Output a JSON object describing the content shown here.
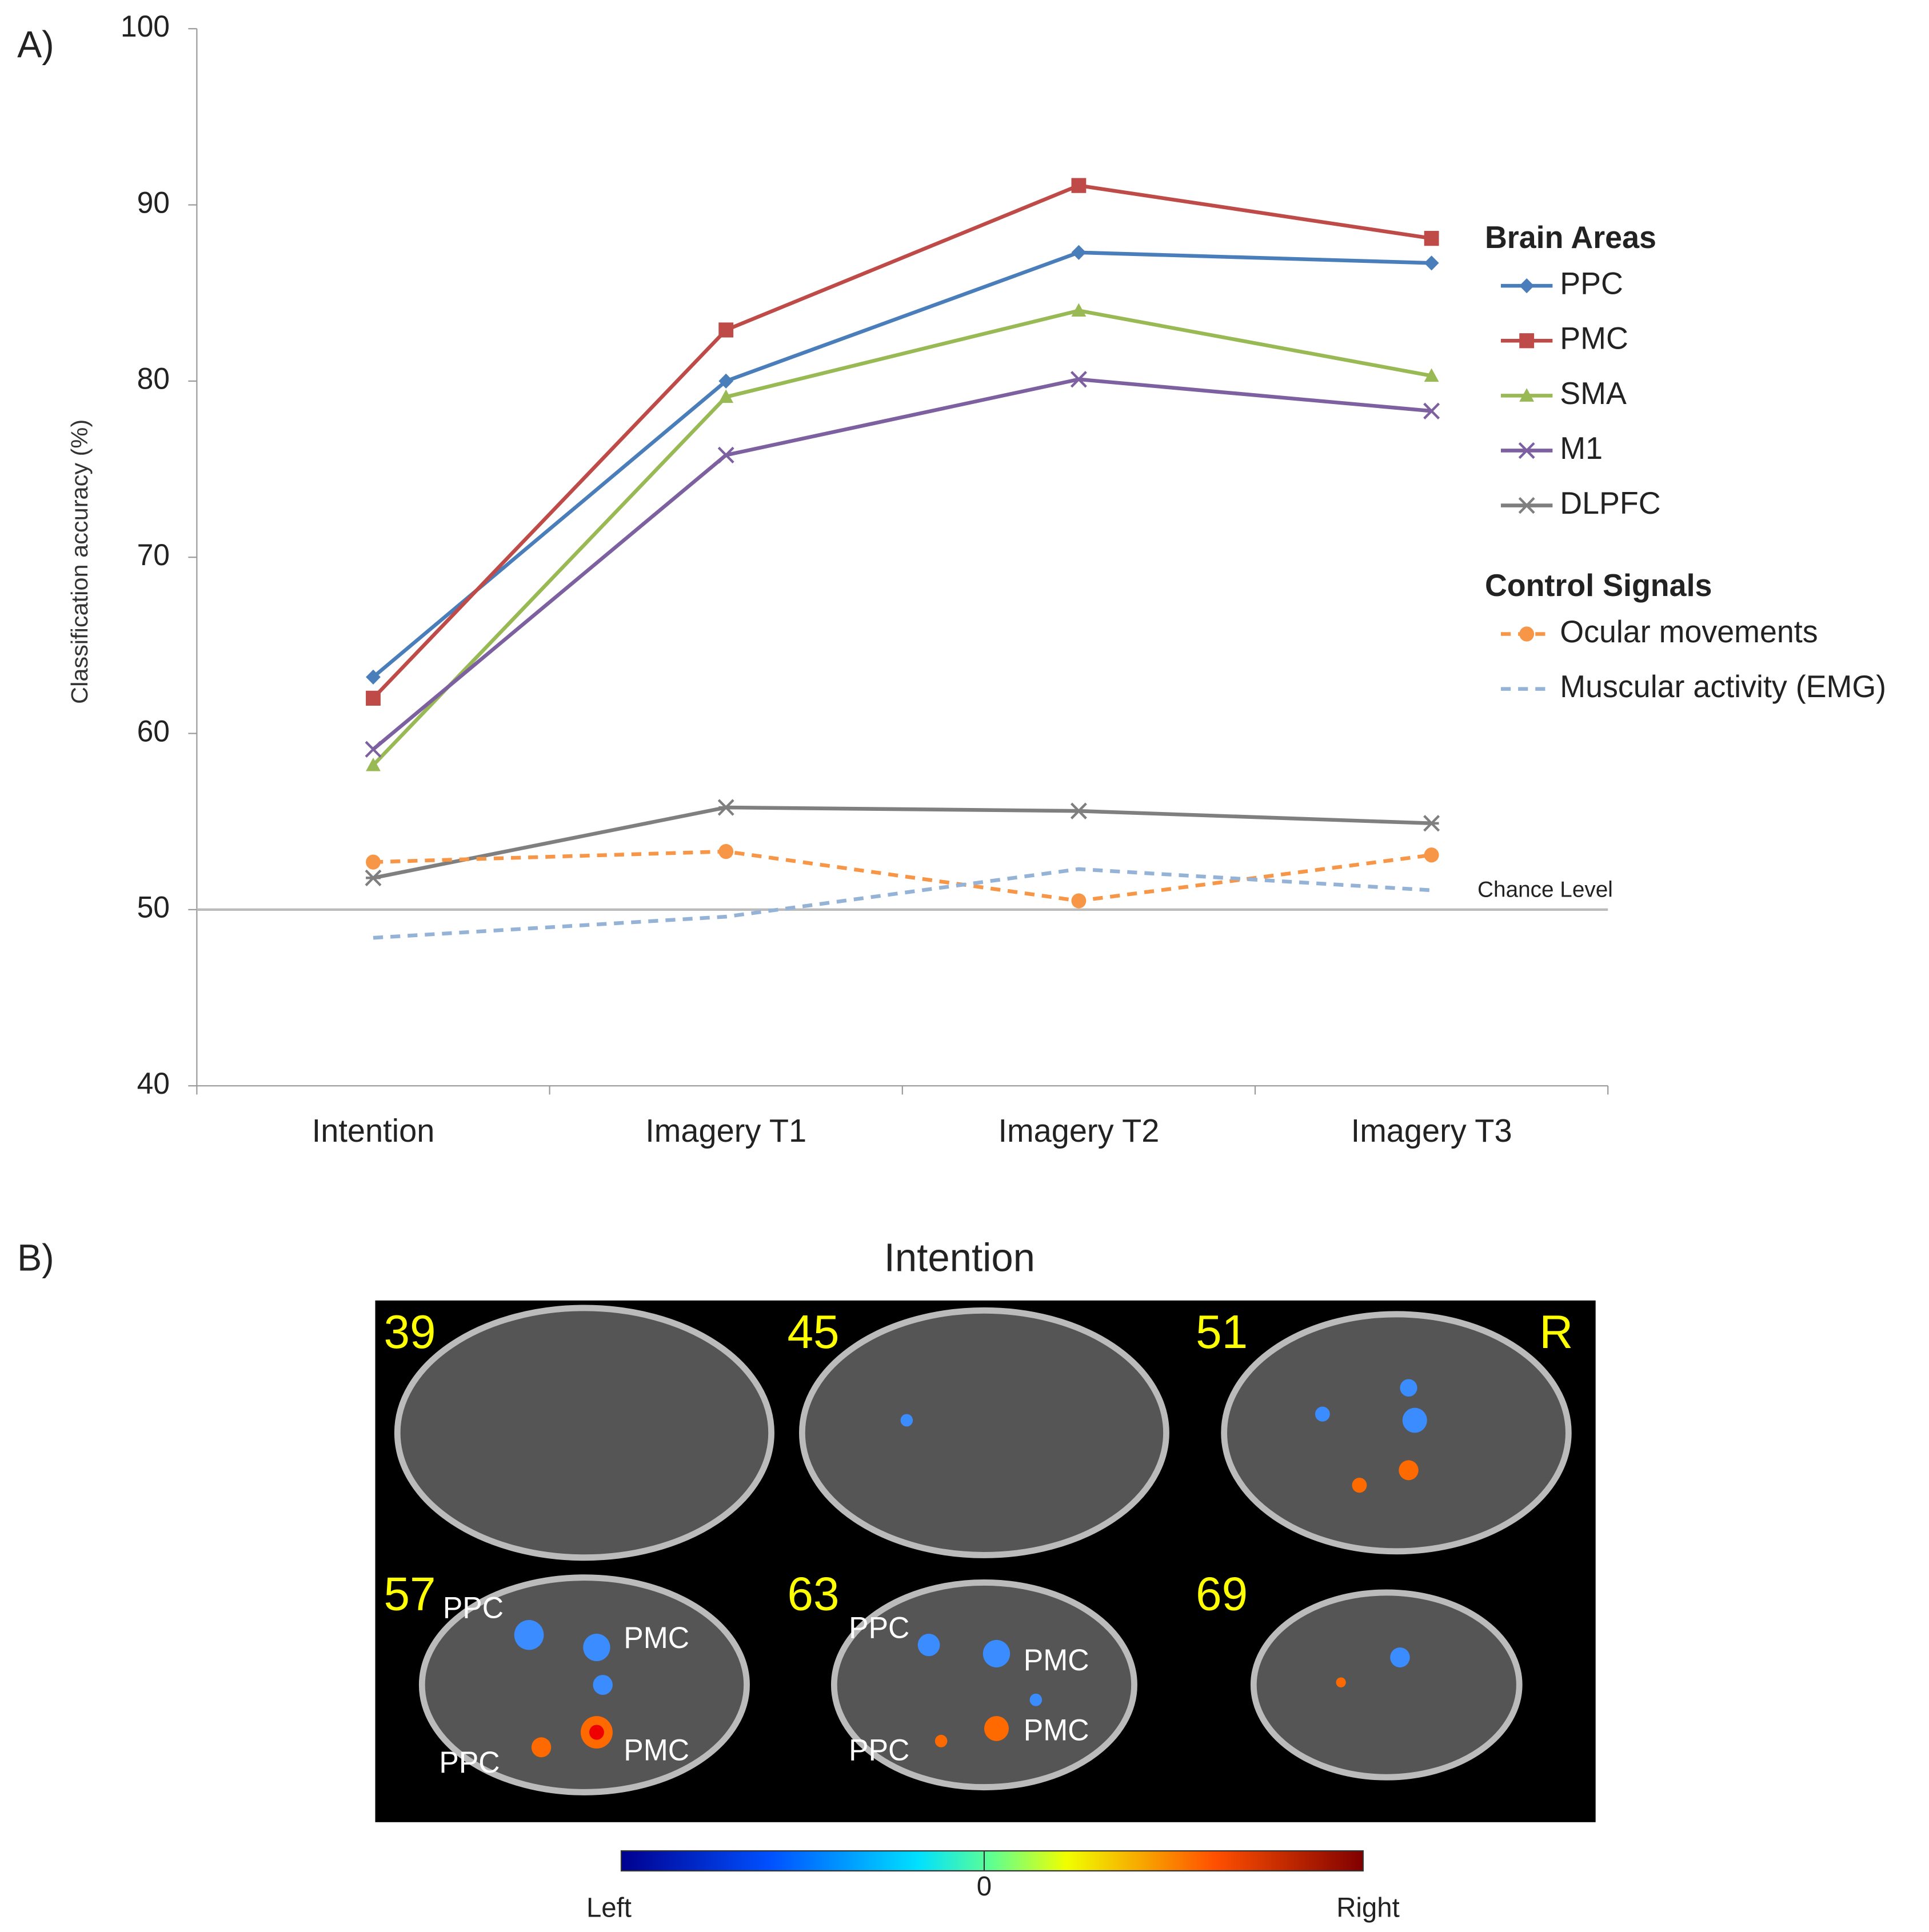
{
  "panel_labels": [
    "A)",
    "B)"
  ],
  "chart_data": {
    "type": "line",
    "y_label": "Classification accuracy (%)",
    "categories": [
      "Intention",
      "Imagery T1",
      "Imagery T2",
      "Imagery T3"
    ],
    "ylim": [
      40,
      100
    ],
    "yticks": [
      40,
      50,
      60,
      70,
      80,
      90,
      100
    ],
    "legend_titles": [
      "Brain Areas",
      "Control Signals"
    ],
    "reference_line": {
      "value": 50,
      "label": "Chance Level"
    },
    "series": [
      {
        "name": "PPC",
        "color": "#4a7ebb",
        "marker": "diamond",
        "linestyle": "solid",
        "values": [
          63.2,
          80.0,
          87.3,
          86.7
        ]
      },
      {
        "name": "PMC",
        "color": "#be4b48",
        "marker": "square",
        "linestyle": "solid",
        "values": [
          62.0,
          82.9,
          91.1,
          88.1
        ]
      },
      {
        "name": "SMA",
        "color": "#98b954",
        "marker": "triangle",
        "linestyle": "solid",
        "values": [
          58.2,
          79.1,
          84.0,
          80.3
        ]
      },
      {
        "name": "M1",
        "color": "#7d60a0",
        "marker": "x",
        "linestyle": "solid",
        "values": [
          59.1,
          75.8,
          80.1,
          78.3
        ]
      },
      {
        "name": "DLPFC",
        "color": "#7f7f7f",
        "marker": "star",
        "linestyle": "solid",
        "values": [
          51.8,
          55.8,
          55.6,
          54.9
        ]
      },
      {
        "name": "Ocular movements",
        "color": "#f79646",
        "marker": "circle",
        "linestyle": "dashed",
        "values": [
          52.7,
          53.3,
          50.5,
          53.1
        ]
      },
      {
        "name": "Muscular activity (EMG)",
        "color": "#95b3d7",
        "marker": "none",
        "linestyle": "dashed",
        "values": [
          48.4,
          49.6,
          52.3,
          51.1
        ]
      }
    ]
  },
  "brain_figure": {
    "title": "Intention",
    "slices": [
      "39",
      "45",
      "51",
      "57",
      "63",
      "69"
    ],
    "orientation_label": "R",
    "region_labels": [
      "PPC",
      "PMC",
      "PPC",
      "PMC",
      "PPC",
      "PMC",
      "PPC",
      "PMC"
    ],
    "colorbar": {
      "left": "Left",
      "center": "0",
      "right": "Right"
    }
  }
}
